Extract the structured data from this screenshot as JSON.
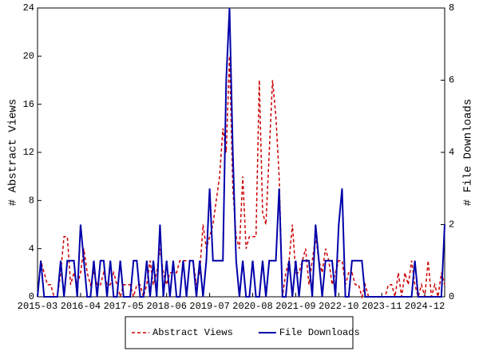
{
  "chart_data": {
    "type": "line",
    "y_label": "# Abstract Views",
    "y2_label": "# File Downloads",
    "categories": [
      "2015-03",
      null,
      null,
      null,
      null,
      null,
      null,
      null,
      null,
      null,
      null,
      null,
      null,
      "2016-04",
      null,
      null,
      null,
      null,
      null,
      null,
      null,
      null,
      null,
      null,
      null,
      null,
      "2017-05",
      null,
      null,
      null,
      null,
      null,
      null,
      null,
      null,
      null,
      null,
      null,
      null,
      "2018-06",
      null,
      null,
      null,
      null,
      null,
      null,
      null,
      null,
      null,
      null,
      null,
      null,
      "2019-07",
      null,
      null,
      null,
      null,
      null,
      null,
      null,
      null,
      null,
      null,
      null,
      null,
      "2020-08",
      null,
      null,
      null,
      null,
      null,
      null,
      null,
      null,
      null,
      null,
      null,
      null,
      "2021-09",
      null,
      null,
      null,
      null,
      null,
      null,
      null,
      null,
      null,
      null,
      null,
      null,
      "2022-10",
      null,
      null,
      null,
      null,
      null,
      null,
      null,
      null,
      null,
      null,
      null,
      null,
      "2023-11",
      null,
      null,
      null,
      null,
      null,
      null,
      null,
      null,
      null,
      null,
      null,
      null,
      "2024-12",
      null,
      null,
      null,
      null,
      null,
      null
    ],
    "series": [
      {
        "name": "Abstract Views",
        "color": "#cc0000",
        "line_style": "dashed",
        "axis": "y",
        "values": [
          0,
          3,
          2,
          1,
          1,
          0,
          0,
          2,
          5,
          5,
          1,
          2,
          1,
          2,
          4,
          2,
          1,
          2,
          1,
          1,
          2,
          1,
          1,
          2,
          1,
          0,
          1,
          1,
          1,
          0,
          1,
          1,
          0,
          1,
          3,
          1,
          2,
          4,
          2,
          1,
          2,
          2,
          2,
          3,
          3,
          3,
          3,
          3,
          1,
          2,
          6,
          4,
          5,
          6,
          8,
          10,
          14,
          12,
          20,
          9,
          5,
          4,
          10,
          4,
          5,
          5,
          5,
          18,
          7,
          6,
          12,
          18,
          15,
          10,
          0,
          2,
          3,
          6,
          2,
          2,
          3,
          4,
          1,
          3,
          5,
          3,
          2,
          4,
          3,
          1,
          2,
          3,
          3,
          1,
          2,
          2,
          1,
          1,
          0,
          1,
          0,
          0,
          0,
          0,
          0,
          0,
          1,
          1,
          0,
          2,
          0,
          2,
          1,
          3,
          1,
          0,
          1,
          0,
          3,
          0,
          1,
          0,
          2,
          1
        ]
      },
      {
        "name": "File Downloads",
        "color": "#0000aa",
        "line_style": "solid",
        "axis": "y2",
        "values": [
          0,
          1,
          0,
          0,
          0,
          0,
          0,
          1,
          0,
          1,
          1,
          1,
          0,
          2,
          1,
          0,
          0,
          1,
          0,
          1,
          1,
          0,
          1,
          0,
          0,
          1,
          0,
          0,
          0,
          1,
          1,
          0,
          0,
          1,
          0,
          1,
          0,
          2,
          0,
          1,
          0,
          1,
          0,
          0,
          1,
          0,
          1,
          1,
          0,
          1,
          0,
          1,
          3,
          1,
          1,
          1,
          1,
          6,
          8,
          4,
          1,
          0,
          1,
          0,
          0,
          1,
          0,
          0,
          1,
          0,
          1,
          1,
          1,
          3,
          0,
          0,
          1,
          0,
          1,
          0,
          1,
          1,
          1,
          0,
          2,
          1,
          0,
          1,
          1,
          1,
          0,
          2,
          3,
          0,
          0,
          1,
          1,
          1,
          1,
          0,
          0,
          0,
          0,
          0,
          0,
          0,
          0,
          0,
          0,
          0,
          0,
          0,
          0,
          0,
          1,
          0,
          0,
          0,
          0,
          0,
          0,
          0,
          0,
          2
        ]
      }
    ],
    "ylim": [
      0,
      24
    ],
    "yticks": [
      0,
      4,
      8,
      12,
      16,
      20,
      24
    ],
    "y2lim": [
      0,
      8
    ],
    "y2ticks": [
      0,
      2,
      4,
      6,
      8
    ],
    "legend_position": "bottom"
  }
}
